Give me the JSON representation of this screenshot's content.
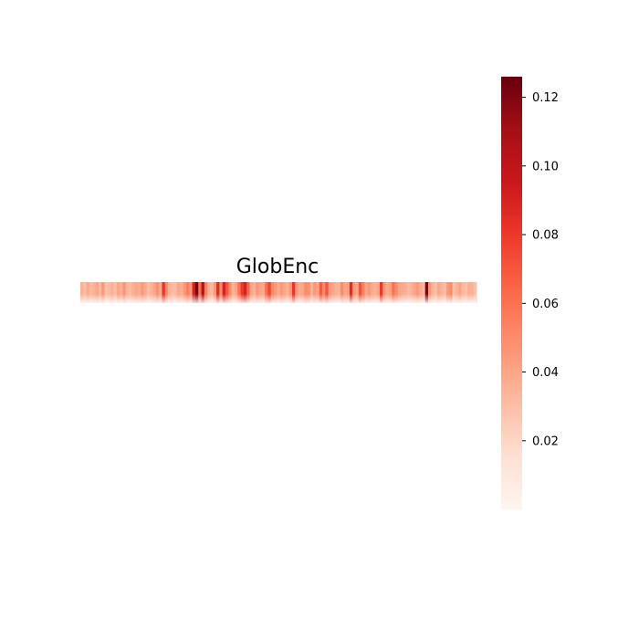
{
  "chart_data": {
    "type": "heatmap",
    "title": "GlobEnc",
    "xlabel": "",
    "ylabel": "",
    "colormap": "Reds",
    "color_low": "#fff5f0",
    "color_high": "#67000d",
    "value_range": [
      0.0,
      0.126
    ],
    "colorbar": {
      "ticks": [
        0.02,
        0.04,
        0.06,
        0.08,
        0.1,
        0.12
      ],
      "tick_labels": [
        "0.02",
        "0.04",
        "0.06",
        "0.08",
        "0.10",
        "0.12"
      ]
    },
    "rows": 1,
    "cells": [
      0.035,
      0.03,
      0.038,
      0.032,
      0.035,
      0.04,
      0.033,
      0.045,
      0.028,
      0.032,
      0.036,
      0.03,
      0.04,
      0.034,
      0.046,
      0.034,
      0.032,
      0.036,
      0.04,
      0.037,
      0.044,
      0.038,
      0.03,
      0.035,
      0.04,
      0.048,
      0.038,
      0.082,
      0.05,
      0.036,
      0.03,
      0.032,
      0.04,
      0.036,
      0.045,
      0.055,
      0.045,
      0.09,
      0.12,
      0.06,
      0.105,
      0.055,
      0.035,
      0.032,
      0.045,
      0.085,
      0.05,
      0.09,
      0.07,
      0.05,
      0.035,
      0.04,
      0.06,
      0.08,
      0.09,
      0.065,
      0.04,
      0.035,
      0.045,
      0.04,
      0.038,
      0.06,
      0.075,
      0.05,
      0.045,
      0.038,
      0.045,
      0.04,
      0.035,
      0.045,
      0.082,
      0.045,
      0.038,
      0.04,
      0.05,
      0.048,
      0.035,
      0.045,
      0.04,
      0.068,
      0.05,
      0.07,
      0.045,
      0.04,
      0.036,
      0.035,
      0.05,
      0.04,
      0.042,
      0.085,
      0.045,
      0.04,
      0.07,
      0.055,
      0.04,
      0.045,
      0.038,
      0.035,
      0.04,
      0.08,
      0.045,
      0.038,
      0.042,
      0.06,
      0.05,
      0.04,
      0.038,
      0.036,
      0.032,
      0.035,
      0.04,
      0.045,
      0.038,
      0.032,
      0.12,
      0.045,
      0.035,
      0.03,
      0.04,
      0.035,
      0.03,
      0.045,
      0.05,
      0.03,
      0.035,
      0.04,
      0.032,
      0.03,
      0.036,
      0.035,
      0.03
    ]
  }
}
